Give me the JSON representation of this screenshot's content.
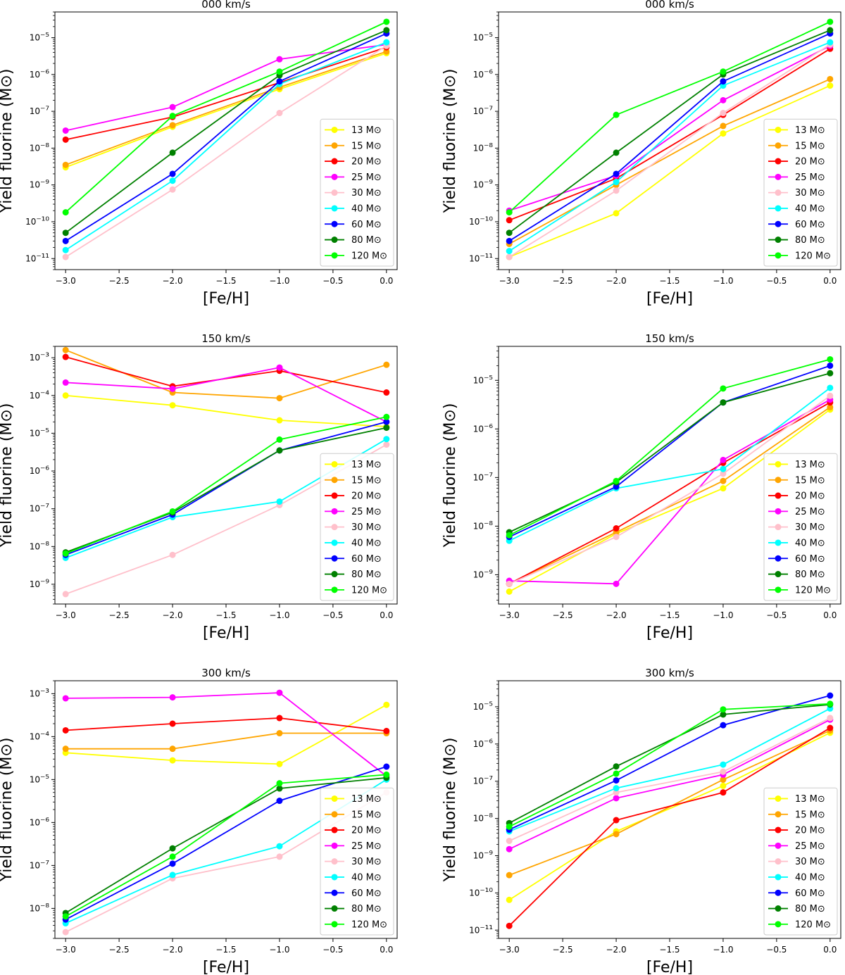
{
  "legend_labels": [
    "13 M⊙",
    "15 M⊙",
    "20 M⊙",
    "25 M⊙",
    "30 M⊙",
    "40 M⊙",
    "60 M⊙",
    "80 M⊙",
    "120 M⊙"
  ],
  "series_colors": [
    "#ffff00",
    "#ffa500",
    "#ff0000",
    "#ff00ff",
    "#ffc0cb",
    "#00ffff",
    "#0000ff",
    "#008000",
    "#00ff00"
  ],
  "chart_data": [
    {
      "type": "line",
      "title": "000 km/s",
      "xlabel": "[Fe/H]",
      "ylabel": "Yield fluorine (M⊙)",
      "yscale": "log",
      "xlim": [
        -3.1,
        0.1
      ],
      "ylim": [
        5e-12,
        5e-05
      ],
      "legend": "bottom-right",
      "x": [
        -3,
        -2,
        -1,
        0
      ],
      "xticks": [
        -3.0,
        -2.5,
        -2.0,
        -1.5,
        -1.0,
        -0.5,
        0.0
      ],
      "xticklabels": [
        "−3.0",
        "−2.5",
        "−2.0",
        "−1.5",
        "−1.0",
        "−0.5",
        "0.0"
      ],
      "ytick_exps": [
        -11,
        -10,
        -9,
        -8,
        -7,
        -6,
        -5
      ],
      "series": [
        {
          "name": "13 M⊙",
          "values": [
            3e-09,
            3.8e-08,
            4e-07,
            3.8e-06
          ]
        },
        {
          "name": "15 M⊙",
          "values": [
            3.5e-09,
            4.2e-08,
            4.5e-07,
            4.2e-06
          ]
        },
        {
          "name": "20 M⊙",
          "values": [
            1.7e-08,
            7e-08,
            6e-07,
            5.5e-06
          ]
        },
        {
          "name": "25 M⊙",
          "values": [
            3e-08,
            1.3e-07,
            2.6e-06,
            6.5e-06
          ]
        },
        {
          "name": "30 M⊙",
          "values": [
            1.1e-11,
            7.5e-10,
            9e-08,
            6e-06
          ]
        },
        {
          "name": "40 M⊙",
          "values": [
            1.7e-11,
            1.3e-09,
            5.5e-07,
            7.5e-06
          ]
        },
        {
          "name": "60 M⊙",
          "values": [
            3e-11,
            2e-09,
            6.5e-07,
            1.3e-05
          ]
        },
        {
          "name": "80 M⊙",
          "values": [
            5e-11,
            7.5e-09,
            9.5e-07,
            1.6e-05
          ]
        },
        {
          "name": "120 M⊙",
          "values": [
            1.8e-10,
            7.5e-08,
            1.2e-06,
            2.7e-05
          ]
        }
      ]
    },
    {
      "type": "line",
      "title": "000 km/s",
      "xlabel": "[Fe/H]",
      "ylabel": "Yield fluorine (M⊙)",
      "yscale": "log",
      "xlim": [
        -3.1,
        0.1
      ],
      "ylim": [
        5e-12,
        5e-05
      ],
      "legend": "bottom-right",
      "x": [
        -3,
        -2,
        -1,
        0
      ],
      "xticks": [
        -3.0,
        -2.5,
        -2.0,
        -1.5,
        -1.0,
        -0.5,
        0.0
      ],
      "xticklabels": [
        "−3.0",
        "−2.5",
        "−2.0",
        "−1.5",
        "−1.0",
        "−0.5",
        "0.0"
      ],
      "ytick_exps": [
        -11,
        -10,
        -9,
        -8,
        -7,
        -6,
        -5
      ],
      "series": [
        {
          "name": "13 M⊙",
          "values": [
            1.1e-11,
            1.7e-10,
            2.5e-08,
            5e-07
          ]
        },
        {
          "name": "15 M⊙",
          "values": [
            2.5e-11,
            1e-09,
            4e-08,
            7.5e-07
          ]
        },
        {
          "name": "20 M⊙",
          "values": [
            1.1e-10,
            1.5e-09,
            8e-08,
            5e-06
          ]
        },
        {
          "name": "25 M⊙",
          "values": [
            2e-10,
            1.8e-09,
            2e-07,
            6e-06
          ]
        },
        {
          "name": "30 M⊙",
          "values": [
            1.1e-11,
            7e-10,
            9e-08,
            6.5e-06
          ]
        },
        {
          "name": "40 M⊙",
          "values": [
            1.6e-11,
            1.2e-09,
            5e-07,
            7.5e-06
          ]
        },
        {
          "name": "60 M⊙",
          "values": [
            3e-11,
            2e-09,
            6.5e-07,
            1.3e-05
          ]
        },
        {
          "name": "80 M⊙",
          "values": [
            5e-11,
            7.5e-09,
            1e-06,
            1.6e-05
          ]
        },
        {
          "name": "120 M⊙",
          "values": [
            1.8e-10,
            8e-08,
            1.2e-06,
            2.7e-05
          ]
        }
      ]
    },
    {
      "type": "line",
      "title": "150 km/s",
      "xlabel": "[Fe/H]",
      "ylabel": "Yield fluorine (M⊙)",
      "yscale": "log",
      "xlim": [
        -3.1,
        0.1
      ],
      "ylim": [
        3e-10,
        0.002
      ],
      "legend": "bottom-right",
      "x": [
        -3,
        -2,
        -1,
        0
      ],
      "xticks": [
        -3.0,
        -2.5,
        -2.0,
        -1.5,
        -1.0,
        -0.5,
        0.0
      ],
      "xticklabels": [
        "−3.0",
        "−2.5",
        "−2.0",
        "−1.5",
        "−1.0",
        "−0.5",
        "0.0"
      ],
      "ytick_exps": [
        -9,
        -8,
        -7,
        -6,
        -5,
        -4,
        -3
      ],
      "series": [
        {
          "name": "13 M⊙",
          "values": [
            0.0001,
            5.5e-05,
            2.2e-05,
            1.5e-05
          ]
        },
        {
          "name": "15 M⊙",
          "values": [
            0.0016,
            0.00012,
            8.5e-05,
            0.00065
          ]
        },
        {
          "name": "20 M⊙",
          "values": [
            0.00105,
            0.000175,
            0.00045,
            0.00012
          ]
        },
        {
          "name": "25 M⊙",
          "values": [
            0.00022,
            0.00015,
            0.00055,
            2e-05
          ]
        },
        {
          "name": "30 M⊙",
          "values": [
            5.5e-10,
            6e-09,
            1.25e-07,
            5e-06
          ]
        },
        {
          "name": "40 M⊙",
          "values": [
            5e-09,
            6e-08,
            1.55e-07,
            7e-06
          ]
        },
        {
          "name": "60 M⊙",
          "values": [
            6e-09,
            7e-08,
            3.5e-06,
            2e-05
          ]
        },
        {
          "name": "80 M⊙",
          "values": [
            7e-09,
            8e-08,
            3.5e-06,
            1.4e-05
          ]
        },
        {
          "name": "120 M⊙",
          "values": [
            6.5e-09,
            8.5e-08,
            6.8e-06,
            2.7e-05
          ]
        }
      ]
    },
    {
      "type": "line",
      "title": "150 km/s",
      "xlabel": "[Fe/H]",
      "ylabel": "Yield fluorine (M⊙)",
      "yscale": "log",
      "xlim": [
        -3.1,
        0.1
      ],
      "ylim": [
        2.5e-10,
        5e-05
      ],
      "legend": "bottom-right",
      "x": [
        -3,
        -2,
        -1,
        0
      ],
      "xticks": [
        -3.0,
        -2.5,
        -2.0,
        -1.5,
        -1.0,
        -0.5,
        0.0
      ],
      "xticklabels": [
        "−3.0",
        "−2.5",
        "−2.0",
        "−1.5",
        "−1.0",
        "−0.5",
        "0.0"
      ],
      "ytick_exps": [
        -9,
        -8,
        -7,
        -6,
        -5
      ],
      "series": [
        {
          "name": "13 M⊙",
          "values": [
            4.5e-10,
            7e-09,
            6e-08,
            2.5e-06
          ]
        },
        {
          "name": "15 M⊙",
          "values": [
            6.5e-10,
            7.5e-09,
            8.5e-08,
            2.8e-06
          ]
        },
        {
          "name": "20 M⊙",
          "values": [
            6.5e-10,
            9e-09,
            2e-07,
            3.5e-06
          ]
        },
        {
          "name": "25 M⊙",
          "values": [
            7.5e-10,
            6.5e-10,
            2.3e-07,
            4e-06
          ]
        },
        {
          "name": "30 M⊙",
          "values": [
            6.5e-10,
            6e-09,
            1.2e-07,
            4.8e-06
          ]
        },
        {
          "name": "40 M⊙",
          "values": [
            5e-09,
            6e-08,
            1.5e-07,
            7e-06
          ]
        },
        {
          "name": "60 M⊙",
          "values": [
            6e-09,
            6.5e-08,
            3.5e-06,
            2e-05
          ]
        },
        {
          "name": "80 M⊙",
          "values": [
            7.5e-09,
            8e-08,
            3.5e-06,
            1.4e-05
          ]
        },
        {
          "name": "120 M⊙",
          "values": [
            6.5e-09,
            8.5e-08,
            6.8e-06,
            2.7e-05
          ]
        }
      ]
    },
    {
      "type": "line",
      "title": "300 km/s",
      "xlabel": "[Fe/H]",
      "ylabel": "Yield fluorine (M⊙)",
      "yscale": "log",
      "xlim": [
        -3.1,
        0.1
      ],
      "ylim": [
        2e-09,
        0.002
      ],
      "legend": "bottom-right",
      "x": [
        -3,
        -2,
        -1,
        0
      ],
      "xticks": [
        -3.0,
        -2.5,
        -2.0,
        -1.5,
        -1.0,
        -0.5,
        0.0
      ],
      "xticklabels": [
        "−3.0",
        "−2.5",
        "−2.0",
        "−1.5",
        "−1.0",
        "−0.5",
        "0.0"
      ],
      "ytick_exps": [
        -8,
        -7,
        -6,
        -5,
        -4,
        -3
      ],
      "series": [
        {
          "name": "13 M⊙",
          "values": [
            4.2e-05,
            2.8e-05,
            2.3e-05,
            0.00055
          ]
        },
        {
          "name": "15 M⊙",
          "values": [
            5.2e-05,
            5.2e-05,
            0.00012,
            0.00012
          ]
        },
        {
          "name": "20 M⊙",
          "values": [
            0.00014,
            0.0002,
            0.00027,
            0.000135
          ]
        },
        {
          "name": "25 M⊙",
          "values": [
            0.00078,
            0.00082,
            0.00105,
            1.2e-05
          ]
        },
        {
          "name": "30 M⊙",
          "values": [
            2.8e-09,
            5e-08,
            1.6e-07,
            5e-06
          ]
        },
        {
          "name": "40 M⊙",
          "values": [
            4.5e-09,
            6e-08,
            2.8e-07,
            1e-05
          ]
        },
        {
          "name": "60 M⊙",
          "values": [
            5.5e-09,
            1.1e-07,
            3.2e-06,
            2e-05
          ]
        },
        {
          "name": "80 M⊙",
          "values": [
            7.8e-09,
            2.5e-07,
            6.2e-06,
            1.1e-05
          ]
        },
        {
          "name": "120 M⊙",
          "values": [
            6.5e-09,
            1.6e-07,
            8.2e-06,
            1.3e-05
          ]
        }
      ]
    },
    {
      "type": "line",
      "title": "300 km/s",
      "xlabel": "[Fe/H]",
      "ylabel": "Yield fluorine (M⊙)",
      "yscale": "log",
      "xlim": [
        -3.1,
        0.1
      ],
      "ylim": [
        6e-12,
        5e-05
      ],
      "legend": "bottom-right",
      "x": [
        -3,
        -2,
        -1,
        0
      ],
      "xticks": [
        -3.0,
        -2.5,
        -2.0,
        -1.5,
        -1.0,
        -0.5,
        0.0
      ],
      "xticklabels": [
        "−3.0",
        "−2.5",
        "−2.0",
        "−1.5",
        "−1.0",
        "−0.5",
        "0.0"
      ],
      "ytick_exps": [
        -11,
        -10,
        -9,
        -8,
        -7,
        -6,
        -5
      ],
      "series": [
        {
          "name": "13 M⊙",
          "values": [
            6.5e-11,
            4.5e-09,
            7.5e-08,
            2e-06
          ]
        },
        {
          "name": "15 M⊙",
          "values": [
            3e-10,
            3.8e-09,
            1.1e-07,
            2.3e-06
          ]
        },
        {
          "name": "20 M⊙",
          "values": [
            1.3e-11,
            9e-09,
            5e-08,
            2.7e-06
          ]
        },
        {
          "name": "25 M⊙",
          "values": [
            1.5e-09,
            3.5e-08,
            1.5e-07,
            4.5e-06
          ]
        },
        {
          "name": "30 M⊙",
          "values": [
            2.5e-09,
            5e-08,
            1.8e-07,
            5e-06
          ]
        },
        {
          "name": "40 M⊙",
          "values": [
            4.5e-09,
            6.5e-08,
            2.8e-07,
            9e-06
          ]
        },
        {
          "name": "60 M⊙",
          "values": [
            5e-09,
            1.05e-07,
            3.2e-06,
            2e-05
          ]
        },
        {
          "name": "80 M⊙",
          "values": [
            7.5e-09,
            2.5e-07,
            6.2e-06,
            1.15e-05
          ]
        },
        {
          "name": "120 M⊙",
          "values": [
            6e-09,
            1.6e-07,
            8.5e-06,
            1.2e-05
          ]
        }
      ]
    }
  ]
}
